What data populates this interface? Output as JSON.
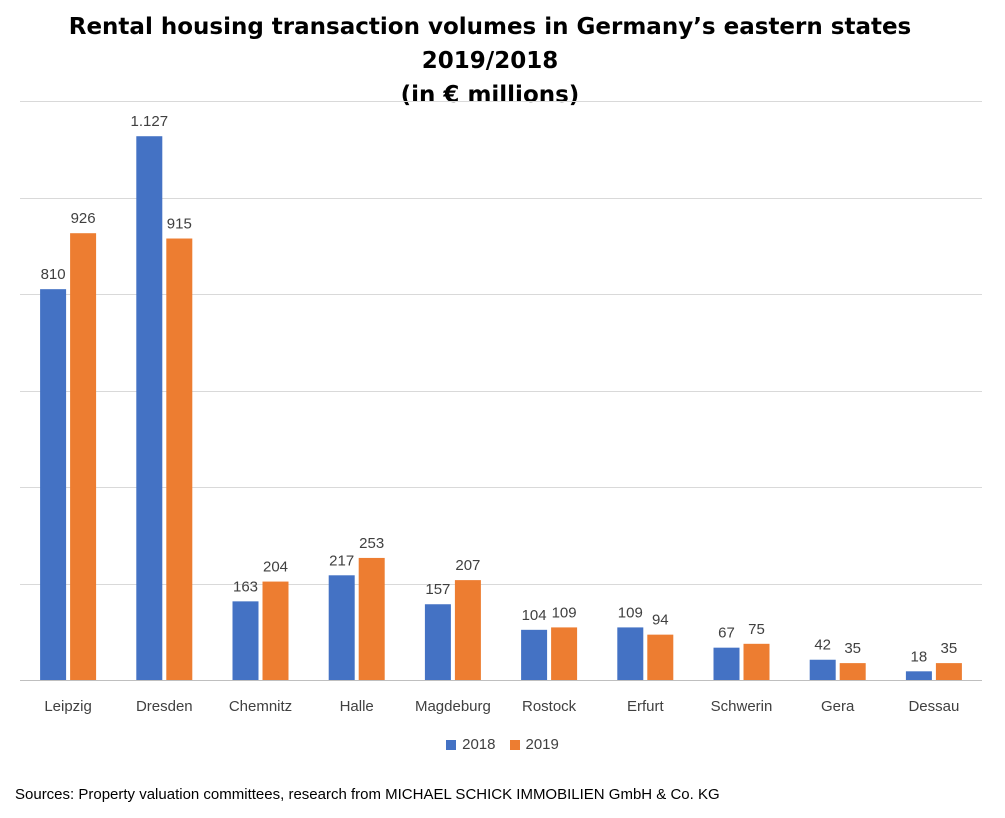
{
  "chart_data": {
    "type": "bar",
    "title_line1": "Rental housing transaction volumes in Germany’s eastern states 2019/2018",
    "title_line2": "(in € millions)",
    "categories": [
      "Leipzig",
      "Dresden",
      "Chemnitz",
      "Halle",
      "Magdeburg",
      "Rostock",
      "Erfurt",
      "Schwerin",
      "Gera",
      "Dessau"
    ],
    "series": [
      {
        "name": "2018",
        "color": "#4472C4",
        "values": [
          810,
          1127,
          163,
          217,
          157,
          104,
          109,
          67,
          42,
          18
        ],
        "labels": [
          "810",
          "1.127",
          "163",
          "217",
          "157",
          "104",
          "109",
          "67",
          "42",
          "18"
        ]
      },
      {
        "name": "2019",
        "color": "#ED7D31",
        "values": [
          926,
          915,
          204,
          253,
          207,
          109,
          94,
          75,
          35,
          35
        ],
        "labels": [
          "926",
          "915",
          "204",
          "253",
          "207",
          "109",
          "94",
          "75",
          "35",
          "35"
        ]
      }
    ],
    "ylim": [
      0,
      1200
    ],
    "y_gridlines": [
      0,
      200,
      400,
      600,
      800,
      1000,
      1200
    ],
    "grid": true,
    "legend_position": "bottom"
  },
  "source": "Sources: Property valuation committees, research from MICHAEL SCHICK IMMOBILIEN GmbH & Co. KG"
}
